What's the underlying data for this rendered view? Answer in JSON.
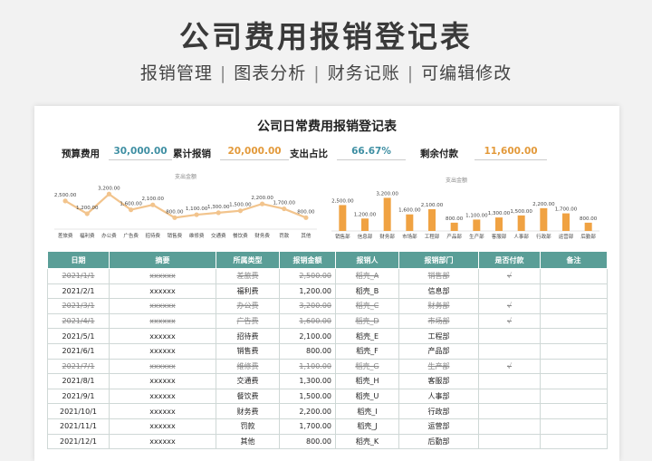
{
  "hero": {
    "title": "公司费用报销登记表",
    "tags": [
      "报销管理",
      "图表分析",
      "财务记账",
      "可编辑修改"
    ],
    "separator": "|"
  },
  "sheet": {
    "title": "公司日常费用报销登记表",
    "kpis": [
      {
        "label": "预算费用",
        "value": "30,000.00",
        "color": "#3f8fa3"
      },
      {
        "label": "累计报销",
        "value": "20,000.00",
        "color": "#e39a3b"
      },
      {
        "label": "支出占比",
        "value": "66.67%",
        "color": "#3f8fa3"
      },
      {
        "label": "剩余付款",
        "value": "11,600.00",
        "color": "#e39a3b"
      }
    ]
  },
  "chart_data": [
    {
      "type": "line",
      "title": "支出金额",
      "categories": [
        "差旅费",
        "福利费",
        "办公费",
        "广告费",
        "招待费",
        "销售费",
        "维修费",
        "交通费",
        "餐饮费",
        "财务费",
        "罚款",
        "其他"
      ],
      "values": [
        2500,
        1200,
        3200,
        1600,
        2100,
        800,
        1100,
        1300,
        1500,
        2200,
        1700,
        800
      ],
      "data_labels": [
        "2,500.00",
        "1,200.00",
        "3,200.00",
        "1,600.00",
        "2,100.00",
        "800.00",
        "1,100.00",
        "1,300.00",
        "1,500.00",
        "2,200.00",
        "1,700.00",
        "800.00"
      ],
      "color": "#f2c48d"
    },
    {
      "type": "bar",
      "title": "支出金额",
      "categories": [
        "销售部",
        "信息部",
        "财务部",
        "市场部",
        "工程部",
        "产品部",
        "生产部",
        "客服部",
        "人事部",
        "行政部",
        "运营部",
        "后勤部"
      ],
      "values": [
        2500,
        1200,
        3200,
        1600,
        2100,
        800,
        1100,
        1300,
        1500,
        2200,
        1700,
        800
      ],
      "data_labels": [
        "2,500.00",
        "1,200.00",
        "3,200.00",
        "1,600.00",
        "2,100.00",
        "800.00",
        "1,100.00",
        "1,300.00",
        "1,500.00",
        "2,200.00",
        "1,700.00",
        "800.00"
      ],
      "color": "#f0a242"
    }
  ],
  "table": {
    "headers": [
      "日期",
      "摘要",
      "所属类型",
      "报销金额",
      "报销人",
      "报销部门",
      "是否付款",
      "备注"
    ],
    "rows": [
      {
        "date": "2021/1/1",
        "summary": "xxxxxx",
        "type": "差旅费",
        "amount": "2,500.00",
        "person": "稻壳_A",
        "dept": "销售部",
        "paid": "√",
        "note": "",
        "struck": true
      },
      {
        "date": "2021/2/1",
        "summary": "xxxxxx",
        "type": "福利费",
        "amount": "1,200.00",
        "person": "稻壳_B",
        "dept": "信息部",
        "paid": "",
        "note": "",
        "struck": false
      },
      {
        "date": "2021/3/1",
        "summary": "xxxxxx",
        "type": "办公费",
        "amount": "3,200.00",
        "person": "稻壳_C",
        "dept": "财务部",
        "paid": "√",
        "note": "",
        "struck": true
      },
      {
        "date": "2021/4/1",
        "summary": "xxxxxx",
        "type": "广告费",
        "amount": "1,600.00",
        "person": "稻壳_D",
        "dept": "市场部",
        "paid": "√",
        "note": "",
        "struck": true
      },
      {
        "date": "2021/5/1",
        "summary": "xxxxxx",
        "type": "招待费",
        "amount": "2,100.00",
        "person": "稻壳_E",
        "dept": "工程部",
        "paid": "",
        "note": "",
        "struck": false
      },
      {
        "date": "2021/6/1",
        "summary": "xxxxxx",
        "type": "销售费",
        "amount": "800.00",
        "person": "稻壳_F",
        "dept": "产品部",
        "paid": "",
        "note": "",
        "struck": false
      },
      {
        "date": "2021/7/1",
        "summary": "xxxxxx",
        "type": "维修费",
        "amount": "1,100.00",
        "person": "稻壳_G",
        "dept": "生产部",
        "paid": "√",
        "note": "",
        "struck": true
      },
      {
        "date": "2021/8/1",
        "summary": "xxxxxx",
        "type": "交通费",
        "amount": "1,300.00",
        "person": "稻壳_H",
        "dept": "客服部",
        "paid": "",
        "note": "",
        "struck": false
      },
      {
        "date": "2021/9/1",
        "summary": "xxxxxx",
        "type": "餐饮费",
        "amount": "1,500.00",
        "person": "稻壳_U",
        "dept": "人事部",
        "paid": "",
        "note": "",
        "struck": false
      },
      {
        "date": "2021/10/1",
        "summary": "xxxxxx",
        "type": "财务费",
        "amount": "2,200.00",
        "person": "稻壳_I",
        "dept": "行政部",
        "paid": "",
        "note": "",
        "struck": false
      },
      {
        "date": "2021/11/1",
        "summary": "xxxxxx",
        "type": "罚款",
        "amount": "1,700.00",
        "person": "稻壳_J",
        "dept": "运营部",
        "paid": "",
        "note": "",
        "struck": false
      },
      {
        "date": "2021/12/1",
        "summary": "xxxxxx",
        "type": "其他",
        "amount": "800.00",
        "person": "稻壳_K",
        "dept": "后勤部",
        "paid": "",
        "note": "",
        "struck": false
      }
    ]
  }
}
